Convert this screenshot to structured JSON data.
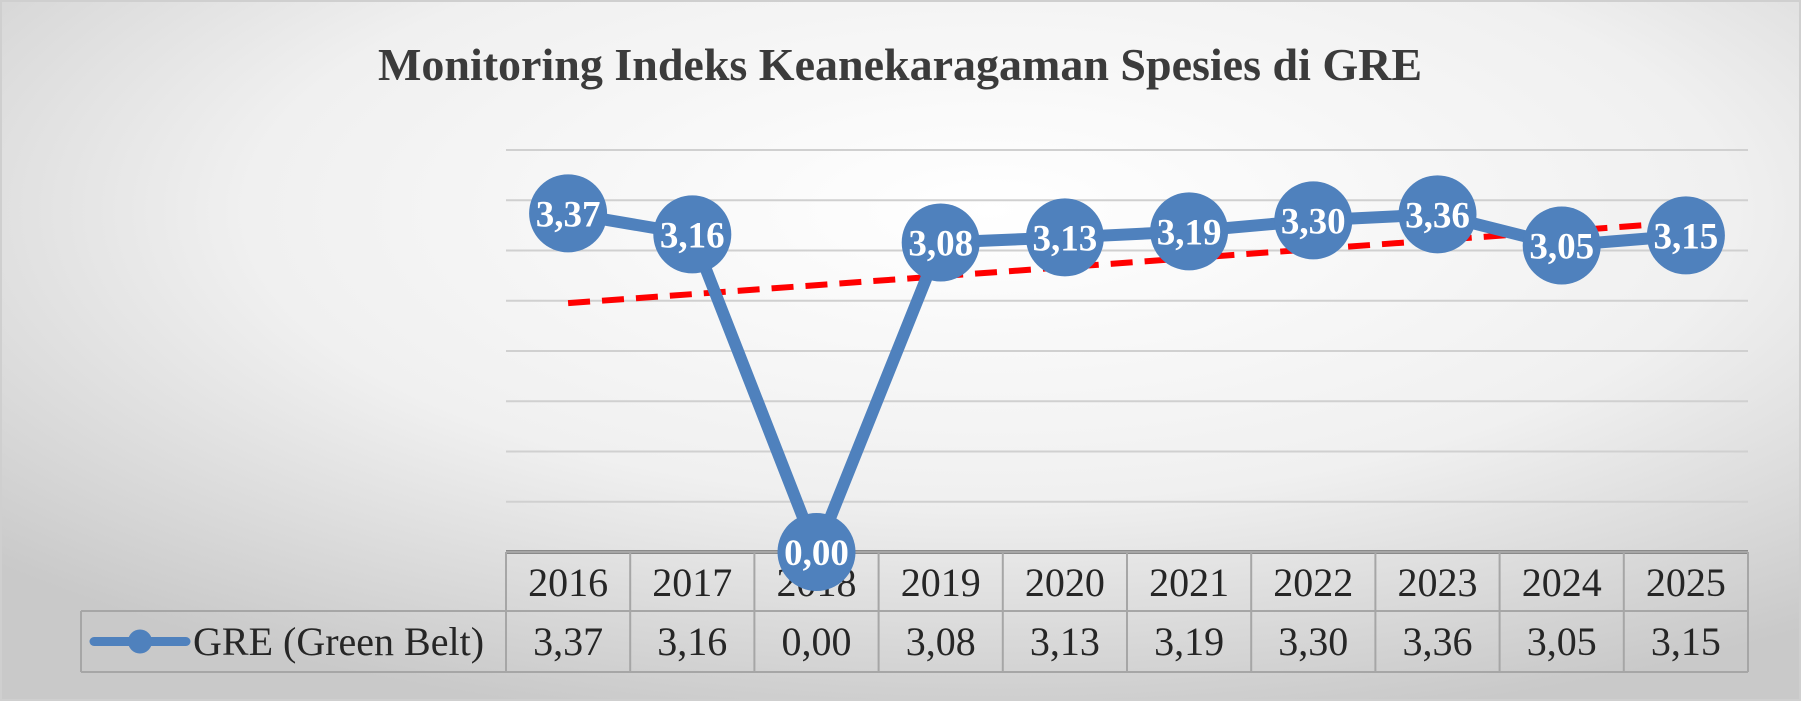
{
  "chart_data": {
    "type": "line",
    "title": "Monitoring Indeks Keanekaragaman Spesies di GRE",
    "categories": [
      "2016",
      "2017",
      "2018",
      "2019",
      "2020",
      "2021",
      "2022",
      "2023",
      "2024",
      "2025"
    ],
    "series": [
      {
        "name": "GRE (Green Belt)",
        "values": [
          3.37,
          3.16,
          0.0,
          3.08,
          3.13,
          3.19,
          3.3,
          3.36,
          3.05,
          3.15
        ],
        "labels": [
          "3,37",
          "3,16",
          "0,00",
          "3,08",
          "3,13",
          "3,19",
          "3,30",
          "3,36",
          "3,05",
          "3,15"
        ],
        "color": "#4f81bd"
      }
    ],
    "trendline": {
      "type": "linear",
      "color": "#ff0000",
      "style": "dashed"
    },
    "ylim": [
      0,
      4
    ],
    "grid": true,
    "legend": "data-table-left",
    "data_table": true
  }
}
